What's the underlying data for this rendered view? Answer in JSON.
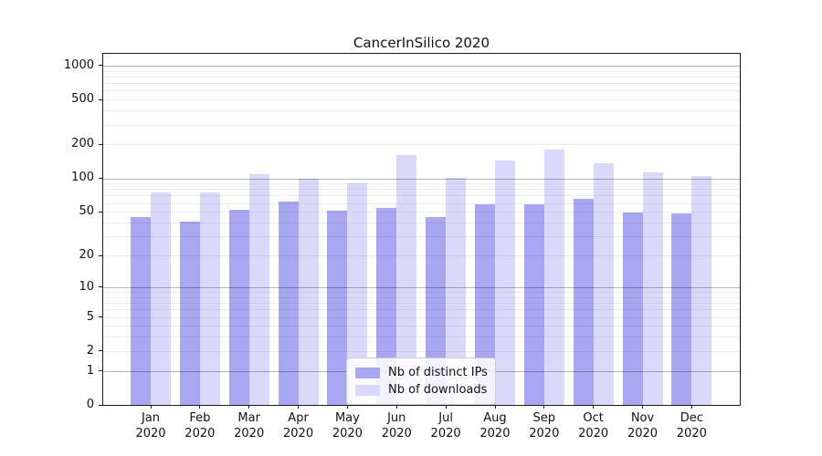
{
  "chart_data": {
    "type": "bar",
    "title": "CancerInSilico 2020",
    "categories": [
      "Jan 2020",
      "Feb 2020",
      "Mar 2020",
      "Apr 2020",
      "May 2020",
      "Jun 2020",
      "Jul 2020",
      "Aug 2020",
      "Sep 2020",
      "Oct 2020",
      "Nov 2020",
      "Dec 2020"
    ],
    "x_tick_labels": [
      [
        "Jan",
        "2020"
      ],
      [
        "Feb",
        "2020"
      ],
      [
        "Mar",
        "2020"
      ],
      [
        "Apr",
        "2020"
      ],
      [
        "May",
        "2020"
      ],
      [
        "Jun",
        "2020"
      ],
      [
        "Jul",
        "2020"
      ],
      [
        "Aug",
        "2020"
      ],
      [
        "Sep",
        "2020"
      ],
      [
        "Oct",
        "2020"
      ],
      [
        "Nov",
        "2020"
      ],
      [
        "Dec",
        "2020"
      ]
    ],
    "series": [
      {
        "name": "Nb of distinct IPs",
        "color": "#a7a7f2",
        "values": [
          45,
          41,
          52,
          62,
          51,
          54,
          45,
          58,
          59,
          65,
          49,
          48
        ]
      },
      {
        "name": "Nb of downloads",
        "color": "#d9d9fa",
        "values": [
          75,
          75,
          109,
          99,
          91,
          160,
          101,
          144,
          179,
          135,
          112,
          105
        ]
      }
    ],
    "yticks": [
      0,
      1,
      2,
      5,
      10,
      20,
      50,
      100,
      200,
      500,
      1000
    ],
    "ylim": [
      0,
      1000
    ],
    "yscale": "log(1+x)",
    "grid": true,
    "legend_position": "lower center"
  }
}
